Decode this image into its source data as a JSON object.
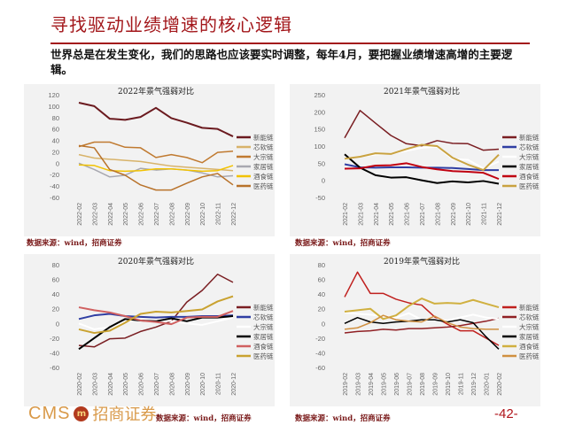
{
  "header": {
    "title": "寻找驱动业绩增速的核心逻辑",
    "paragraph": "世界总是在发生变化，我们的思路也应该要实时调整，每年4月，要把握业绩增速高增的主要逻辑。"
  },
  "footer": {
    "logo_text": "CMS",
    "logo_cn": "招商证券",
    "page": "-42-"
  },
  "chart_data": [
    {
      "type": "line",
      "title": "2022年景气强弱对比",
      "source": "数据来源：wind，招商证券",
      "ylim": [
        -60,
        120
      ],
      "yticks": [
        -60,
        -40,
        -20,
        0,
        20,
        40,
        60,
        80,
        100,
        120
      ],
      "grid": false,
      "legend": "right",
      "categories": [
        "2022-02",
        "2022-03",
        "2022-04",
        "2022-05",
        "2022-06",
        "2022-07",
        "2022-08",
        "2022-09",
        "2022-10",
        "2022-11",
        "2022-12"
      ],
      "series": [
        {
          "name": "新能链",
          "color": "#6b1a1f",
          "width": 2,
          "values": [
            106,
            100,
            78,
            76,
            81,
            97,
            79,
            71,
            62,
            60,
            47
          ]
        },
        {
          "name": "芯软链",
          "color": "#d8b36a",
          "width": 1.5,
          "values": [
            15,
            9,
            7,
            5,
            3,
            -1,
            -5,
            -7,
            -9,
            -11,
            -13
          ]
        },
        {
          "name": "大宗链",
          "color": "#c07a30",
          "width": 1.5,
          "values": [
            29,
            37,
            37,
            28,
            27,
            10,
            15,
            10,
            1,
            19,
            21
          ]
        },
        {
          "name": "家居链",
          "color": "#a8a8b0",
          "width": 1.5,
          "values": [
            0,
            -11,
            -24,
            -21,
            -9,
            -12,
            -10,
            -12,
            -17,
            -24,
            -22
          ]
        },
        {
          "name": "酒食链",
          "color": "#f2c200",
          "width": 1.5,
          "values": [
            -3,
            -4,
            -13,
            -14,
            -13,
            -10,
            -10,
            -12,
            -14,
            -13,
            -4
          ]
        },
        {
          "name": "医药链",
          "color": "#b8722a",
          "width": 1.5,
          "values": [
            31,
            27,
            -11,
            -21,
            -38,
            -47,
            -47,
            -35,
            -24,
            -18,
            -38
          ]
        }
      ]
    },
    {
      "type": "line",
      "title": "2021年景气强弱对比",
      "source": "数据来源：wind，招商证券",
      "ylim": [
        -50,
        250
      ],
      "yticks": [
        -50,
        0,
        50,
        100,
        150,
        200,
        250
      ],
      "grid": false,
      "legend": "right",
      "categories": [
        "2021-02",
        "2021-03",
        "2021-04",
        "2021-05",
        "2021-06",
        "2021-07",
        "2021-08",
        "2021-09",
        "2021-10",
        "2021-11",
        "2021-12"
      ],
      "series": [
        {
          "name": "新能链",
          "color": "#7a1e22",
          "width": 1.5,
          "values": [
            124,
            204,
            167,
            131,
            107,
            101,
            116,
            108,
            107,
            88,
            91
          ]
        },
        {
          "name": "芯软链",
          "color": "#2f3ea3",
          "width": 2,
          "values": [
            47,
            38,
            37,
            38,
            38,
            37,
            37,
            36,
            33,
            30,
            30
          ]
        },
        {
          "name": "大宗链",
          "color": "#ffffff",
          "width": 2,
          "values": [
            62,
            70,
            75,
            78,
            86,
            95,
            98,
            62,
            60,
            35,
            55
          ]
        },
        {
          "name": "家居链",
          "color": "#000000",
          "width": 2,
          "values": [
            76,
            37,
            15,
            8,
            9,
            0,
            -8,
            -3,
            -6,
            -2,
            -10
          ]
        },
        {
          "name": "酒食链",
          "color": "#c00010",
          "width": 2,
          "values": [
            34,
            35,
            43,
            44,
            50,
            39,
            32,
            27,
            25,
            22,
            4
          ]
        },
        {
          "name": "医药链",
          "color": "#c9a240",
          "width": 2,
          "values": [
            63,
            69,
            79,
            77,
            91,
            104,
            100,
            66,
            46,
            30,
            75
          ]
        }
      ]
    },
    {
      "type": "line",
      "title": "2020年景气强弱对比",
      "source": "数据来源：wind，招商证券",
      "ylim": [
        -60,
        80
      ],
      "yticks": [
        -60,
        -40,
        -20,
        0,
        20,
        40,
        60,
        80
      ],
      "grid": false,
      "legend": "right",
      "categories": [
        "2020-02",
        "2020-03",
        "2020-04",
        "2020-05",
        "2020-06",
        "2020-07",
        "2020-08",
        "2020-09",
        "2020-10",
        "2020-11",
        "2020-12"
      ],
      "series": [
        {
          "name": "新能链",
          "color": "#7a1e22",
          "width": 1.5,
          "values": [
            -30,
            -32,
            -21,
            -20,
            -11,
            -5,
            3,
            29,
            45,
            67,
            56
          ]
        },
        {
          "name": "芯软链",
          "color": "#2f3ea3",
          "width": 2,
          "values": [
            6,
            11,
            13,
            10,
            9,
            8,
            9,
            9,
            10,
            10,
            11
          ]
        },
        {
          "name": "大宗链",
          "color": "#ffffff",
          "width": 2,
          "values": [
            0,
            -8,
            -5,
            2,
            5,
            5,
            3,
            0,
            -2,
            3,
            8
          ]
        },
        {
          "name": "家居链",
          "color": "#000000",
          "width": 2,
          "values": [
            -35,
            -20,
            -5,
            6,
            4,
            3,
            7,
            3,
            8,
            8,
            10
          ]
        },
        {
          "name": "酒食链",
          "color": "#d06060",
          "width": 2,
          "values": [
            22,
            18,
            15,
            10,
            4,
            2,
            -1,
            8,
            9,
            9,
            17
          ]
        },
        {
          "name": "医药链",
          "color": "#c9a230",
          "width": 2,
          "values": [
            -8,
            -13,
            -10,
            1,
            13,
            16,
            15,
            17,
            19,
            30,
            37
          ]
        }
      ]
    },
    {
      "type": "line",
      "title": "2019年景气强弱对比",
      "source": "数据来源：wind，招商证券",
      "ylim": [
        -60,
        80
      ],
      "yticks": [
        -60,
        -40,
        -20,
        0,
        20,
        40,
        60,
        80
      ],
      "grid": false,
      "legend": "right",
      "categories": [
        "2019-02",
        "2019-03",
        "2019-04",
        "2019-05",
        "2019-06",
        "2019-07",
        "2019-08",
        "2019-09",
        "2019-10",
        "2019-11",
        "2019-12",
        "2020-01",
        "2020-02"
      ],
      "series": [
        {
          "name": "新能链",
          "color": "#c0201e",
          "width": 1.5,
          "values": [
            36,
            70,
            41,
            41,
            33,
            28,
            25,
            9,
            -1,
            -10,
            -10,
            -20,
            -30
          ]
        },
        {
          "name": "芯软链",
          "color": "#902024",
          "width": 1.5,
          "values": [
            -13,
            -11,
            -10,
            -8,
            -9,
            -7,
            -7,
            -6,
            -5,
            -3,
            0,
            3,
            7
          ]
        },
        {
          "name": "大宗链",
          "color": "#ffffff",
          "width": 2,
          "values": [
            15,
            13,
            12,
            10,
            8,
            14,
            5,
            6,
            4,
            8,
            12,
            8,
            6
          ]
        },
        {
          "name": "家居链",
          "color": "#000000",
          "width": 1.5,
          "values": [
            0,
            8,
            2,
            0,
            2,
            3,
            5,
            5,
            2,
            5,
            1,
            -18,
            -35
          ]
        },
        {
          "name": "酒食链",
          "color": "#d0b040",
          "width": 2,
          "values": [
            16,
            18,
            20,
            6,
            11,
            24,
            34,
            27,
            28,
            27,
            32,
            27,
            22
          ]
        },
        {
          "name": "医药链",
          "color": "#d09040",
          "width": 1.5,
          "values": [
            -8,
            -6,
            1,
            11,
            5,
            3,
            2,
            10,
            1,
            -5,
            -7,
            -8,
            -8
          ]
        }
      ]
    }
  ]
}
